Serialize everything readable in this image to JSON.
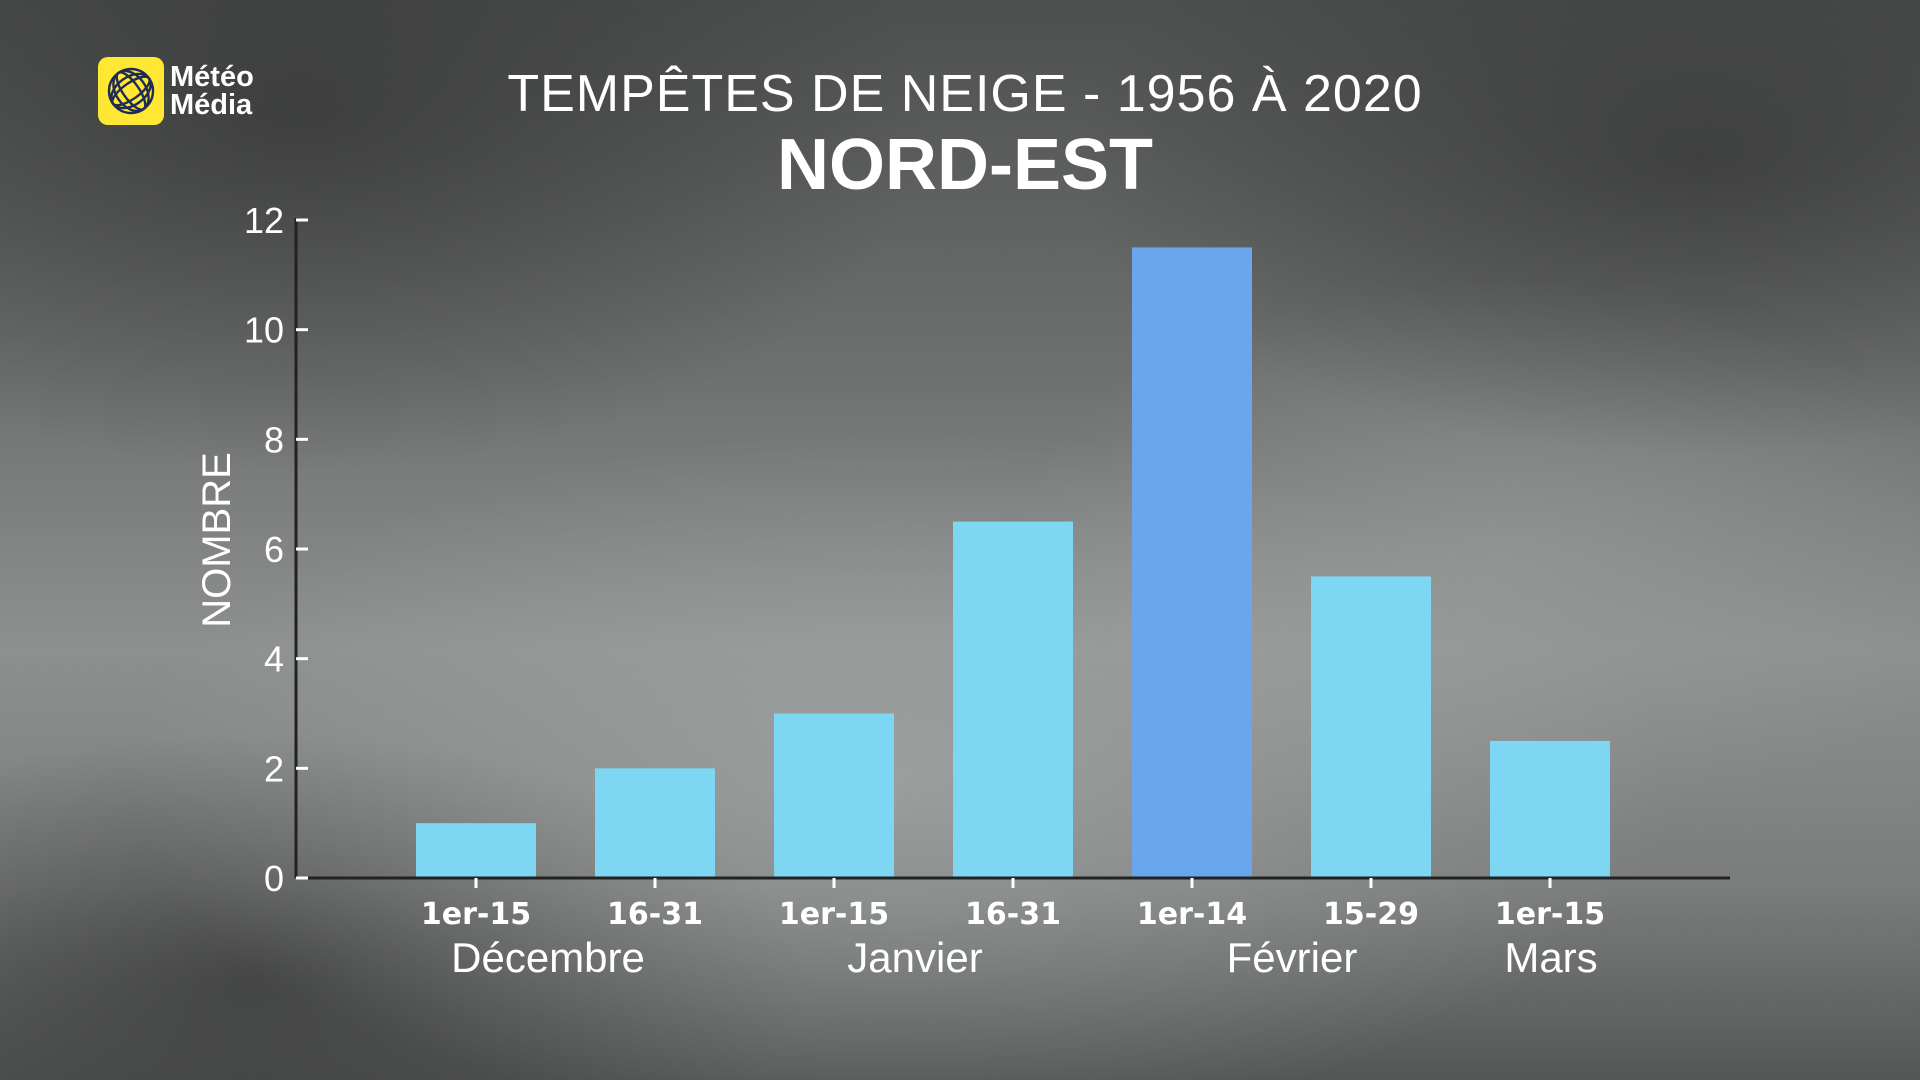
{
  "logo": {
    "line1": "Météo",
    "line2": "Média",
    "icon": "globe-icon",
    "color": "#ffe733"
  },
  "header": {
    "title": "TEMPÊTES DE NEIGE - 1956 À 2020",
    "subtitle": "NORD-EST"
  },
  "chart_data": {
    "type": "bar",
    "title": "TEMPÊTES DE NEIGE - 1956 À 2020",
    "subtitle": "NORD-EST",
    "ylabel": "NOMBRE",
    "xlabel": "",
    "ylim": [
      0,
      12
    ],
    "yticks": [
      0,
      2,
      4,
      6,
      8,
      10,
      12
    ],
    "grid": false,
    "legend": "none",
    "categories": [
      "1er-15",
      "16-31",
      "1er-15",
      "16-31",
      "1er-14",
      "15-29",
      "1er-15"
    ],
    "groups": [
      {
        "label": "Décembre",
        "categories": [
          0,
          1
        ]
      },
      {
        "label": "Janvier",
        "categories": [
          2,
          3
        ]
      },
      {
        "label": "Février",
        "categories": [
          4,
          5
        ]
      },
      {
        "label": "Mars",
        "categories": [
          6
        ]
      }
    ],
    "values": [
      1,
      2,
      3,
      6.5,
      11.5,
      5.5,
      2.5
    ],
    "colors": {
      "bar": "#7dd6f2",
      "highlight": "#69a6ec",
      "axis": "#222222",
      "text": "#ffffff"
    },
    "highlight_index": 4
  }
}
